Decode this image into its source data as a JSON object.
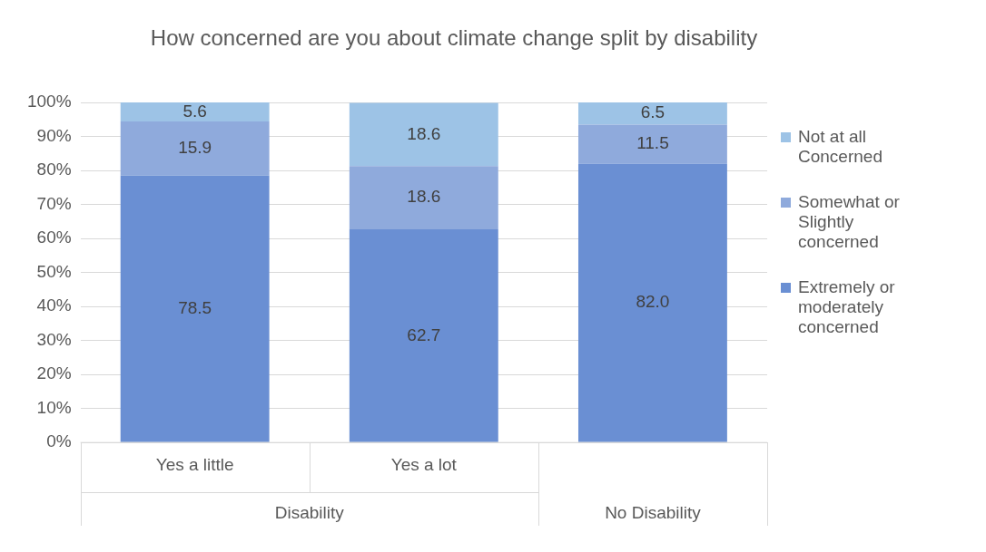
{
  "chart_data": {
    "type": "bar",
    "title": "How concerned are you about climate change split by disability",
    "stacked": true,
    "categories": [
      "Yes a little",
      "Yes a lot",
      null
    ],
    "annotations": [
      "Disability",
      "No Disability"
    ],
    "series": [
      {
        "name": "Extremely or moderately concerned",
        "color": "#6a8fd3",
        "values": [
          78.5,
          62.7,
          82.0
        ],
        "value_labels": [
          "78.5",
          "62.7",
          "82.0"
        ]
      },
      {
        "name": "Somewhat or Slightly concerned",
        "color": "#8faadc",
        "values": [
          15.9,
          18.6,
          11.5
        ],
        "value_labels": [
          "15.9",
          "18.6",
          "11.5"
        ]
      },
      {
        "name": "Not at all Concerned",
        "color": "#9dc3e6",
        "values": [
          5.6,
          18.6,
          6.5
        ],
        "value_labels": [
          "5.6",
          "18.6",
          "6.5"
        ]
      }
    ],
    "ylim": [
      0,
      100
    ],
    "yticks": [
      {
        "value": 0,
        "label": "0%"
      },
      {
        "value": 10,
        "label": "10%"
      },
      {
        "value": 20,
        "label": "20%"
      },
      {
        "value": 30,
        "label": "30%"
      },
      {
        "value": 40,
        "label": "40%"
      },
      {
        "value": 50,
        "label": "50%"
      },
      {
        "value": 60,
        "label": "60%"
      },
      {
        "value": 70,
        "label": "70%"
      },
      {
        "value": 80,
        "label": "80%"
      },
      {
        "value": 90,
        "label": "90%"
      },
      {
        "value": 100,
        "label": "100%"
      }
    ],
    "grid": "y",
    "legend": "right",
    "data_labels": true
  }
}
